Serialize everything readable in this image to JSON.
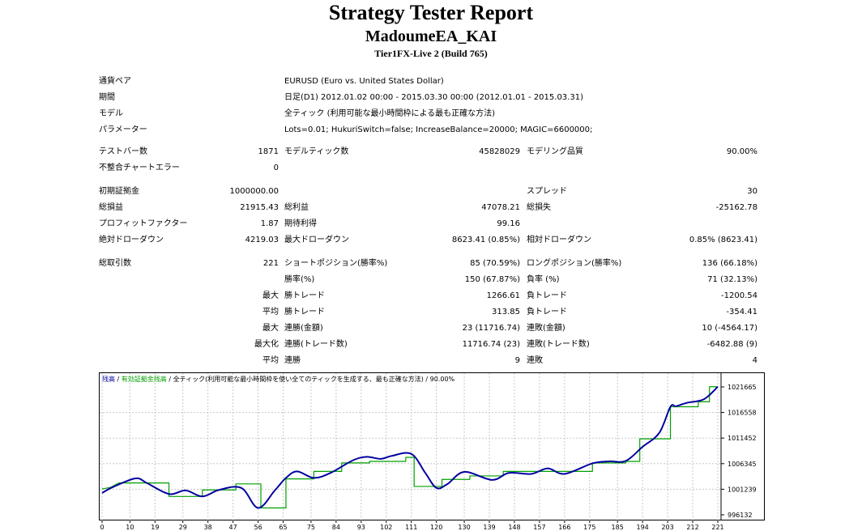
{
  "header": {
    "title": "Strategy Tester Report",
    "ea_name": "MadoumeEA_KAI",
    "server": "Tier1FX-Live 2 (Build 765)"
  },
  "info": {
    "pair_label": "通貨ペア",
    "pair_value": "EURUSD (Euro vs. United States Dollar)",
    "period_label": "期間",
    "period_value": "日足(D1) 2012.01.02 00:00 - 2015.03.30 00:00 (2012.01.01 - 2015.03.31)",
    "model_label": "モデル",
    "model_value": "全ティック (利用可能な最小時間枠による最も正確な方法)",
    "params_label": "パラメーター",
    "params_value": "Lots=0.01; HukuriSwitch=false; IncreaseBalance=20000; MAGIC=6600000;"
  },
  "stats": {
    "bars_label": "テストバー数",
    "bars_value": "1871",
    "ticks_label": "モデルティック数",
    "ticks_value": "45828029",
    "quality_label": "モデリング品質",
    "quality_value": "90.00%",
    "mismatch_label": "不整合チャートエラー",
    "mismatch_value": "0",
    "deposit_label": "初期証拠金",
    "deposit_value": "1000000.00",
    "spread_label": "スプレッド",
    "spread_value": "30",
    "net_label": "総損益",
    "net_value": "21915.43",
    "gross_profit_label": "総利益",
    "gross_profit_value": "47078.21",
    "gross_loss_label": "総損失",
    "gross_loss_value": "-25162.78",
    "pf_label": "プロフィットファクター",
    "pf_value": "1.87",
    "payoff_label": "期待利得",
    "payoff_value": "99.16",
    "abs_dd_label": "絶対ドローダウン",
    "abs_dd_value": "4219.03",
    "max_dd_label": "最大ドローダウン",
    "max_dd_value": "8623.41 (0.85%)",
    "rel_dd_label": "相対ドローダウン",
    "rel_dd_value": "0.85% (8623.41)"
  },
  "trades": {
    "total_label": "総取引数",
    "total_value": "221",
    "short_label": "ショートポジション(勝率%)",
    "short_value": "85 (70.59%)",
    "long_label": "ロングポジション(勝率%)",
    "long_value": "136 (66.18%)",
    "win_label": "勝率(%)",
    "win_value": "150 (67.87%)",
    "loss_label": "負率 (%)",
    "loss_value": "71 (32.13%)",
    "largest_label": "最大",
    "largest_win_label": "勝トレード",
    "largest_win_value": "1266.61",
    "largest_loss_label": "負トレード",
    "largest_loss_value": "-1200.54",
    "average_label": "平均",
    "avg_win_label": "勝トレード",
    "avg_win_value": "313.85",
    "avg_loss_label": "負トレード",
    "avg_loss_value": "-354.41",
    "max_label": "最大",
    "max_cons_wins_label": "連勝(金額)",
    "max_cons_wins_value": "23 (11716.74)",
    "max_cons_losses_label": "連敗(金額)",
    "max_cons_losses_value": "10 (-4564.17)",
    "maximal_label": "最大化",
    "maximal_cons_profit_label": "連勝(トレード数)",
    "maximal_cons_profit_value": "11716.74 (23)",
    "maximal_cons_loss_label": "連敗(トレード数)",
    "maximal_cons_loss_value": "-6482.88 (9)",
    "avg_cons_label": "平均",
    "avg_cons_wins_label": "連勝",
    "avg_cons_wins_value": "9",
    "avg_cons_losses_label": "連敗",
    "avg_cons_losses_value": "4"
  },
  "chart_data": {
    "type": "line",
    "legend": {
      "balance": "残高",
      "sep1": " / ",
      "equity": "有効証拠金残高",
      "sep2": " / ",
      "model": "全ティック(利用可能な最小時間枠を使い全てのティックを生成する、最も正確な方法)",
      "sep3": " / ",
      "quality": "90.00%"
    },
    "xticks": [
      "0",
      "10",
      "19",
      "29",
      "38",
      "47",
      "56",
      "65",
      "75",
      "84",
      "93",
      "102",
      "111",
      "120",
      "130",
      "139",
      "148",
      "157",
      "166",
      "175",
      "185",
      "194",
      "203",
      "212",
      "221"
    ],
    "yticks": [
      "1021665",
      "1016558",
      "1011452",
      "1006345",
      "1001239",
      "996132"
    ],
    "xlim": [
      0,
      221
    ],
    "ylim": [
      996132,
      1021665
    ],
    "colors": {
      "balance": "#0000a0",
      "equity": "#00a000"
    },
    "series": [
      {
        "name": "残高",
        "x": [
          0,
          4,
          12,
          16,
          24,
          30,
          36,
          42,
          50,
          56,
          62,
          66,
          70,
          76,
          82,
          90,
          95,
          100,
          104,
          111,
          116,
          120,
          124,
          130,
          140,
          146,
          154,
          160,
          166,
          176,
          182,
          188,
          194,
          200,
          204,
          206,
          210,
          216,
          221
        ],
        "y": [
          1000500,
          1001700,
          1003400,
          1002500,
          1000300,
          1001000,
          999800,
          1001100,
          1001500,
          997500,
          1001000,
          1003500,
          1004800,
          1003500,
          1004500,
          1007000,
          1007700,
          1007300,
          1007900,
          1008300,
          1004500,
          1001500,
          1002300,
          1004700,
          1003100,
          1004500,
          1004300,
          1005400,
          1004300,
          1006400,
          1006800,
          1006900,
          1009700,
          1012500,
          1017700,
          1017800,
          1018500,
          1019200,
          1021700
        ]
      },
      {
        "name": "有効証拠金残高",
        "x": [
          0,
          3,
          6,
          12,
          18,
          24,
          24,
          36,
          36,
          48,
          48,
          57,
          57,
          66,
          66,
          76,
          76,
          86,
          86,
          96,
          96,
          109,
          109,
          112,
          112,
          122,
          122,
          132,
          132,
          144,
          144,
          158,
          158,
          176,
          176,
          188,
          188,
          193,
          193,
          204,
          204,
          214,
          214,
          218,
          218,
          221
        ],
        "y": [
          1001300,
          1001600,
          1002500,
          1002500,
          1002500,
          1002500,
          999800,
          999800,
          1001100,
          1001100,
          1002300,
          1002300,
          997500,
          997500,
          1003300,
          1003300,
          1004800,
          1004800,
          1006500,
          1006500,
          1006800,
          1006800,
          1007600,
          1007600,
          1001800,
          1001800,
          1003200,
          1003200,
          1003900,
          1003900,
          1004800,
          1004800,
          1004800,
          1004800,
          1006500,
          1006500,
          1006800,
          1006800,
          1011300,
          1011300,
          1017700,
          1017700,
          1018700,
          1018700,
          1021700,
          1021700
        ]
      }
    ]
  }
}
